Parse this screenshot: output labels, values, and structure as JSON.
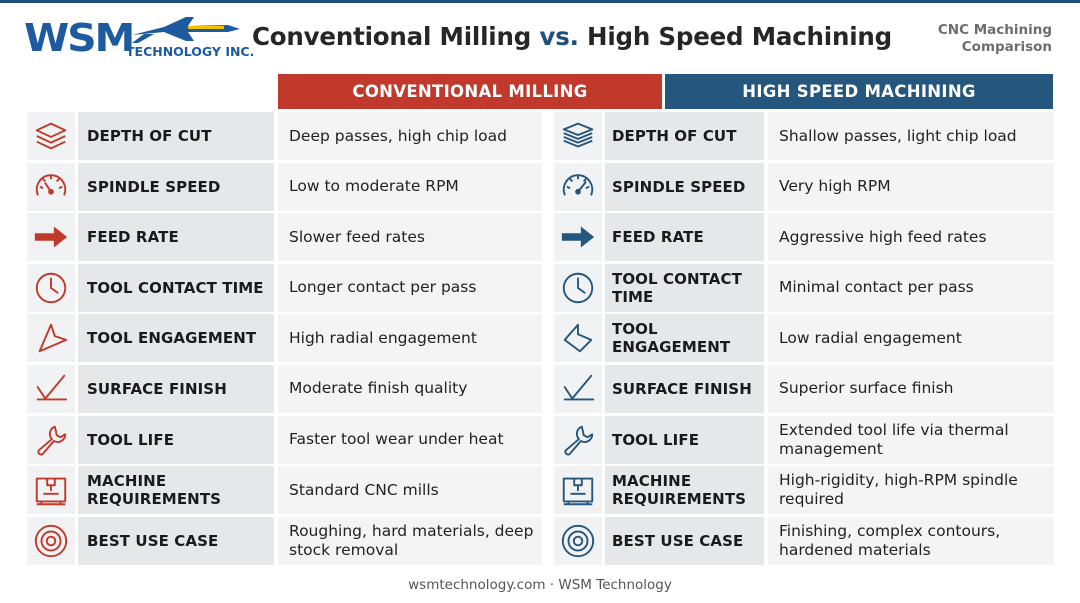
{
  "brand": {
    "logo_text": "WSM",
    "logo_sub": "TECHNOLOGY INC."
  },
  "header": {
    "title_part1": "Conventional Milling ",
    "title_vs": "vs.",
    "title_part2": " High Speed Machining",
    "subtitle_line1": "CNC Machining",
    "subtitle_line2": "Comparison"
  },
  "columns": {
    "conventional": "CONVENTIONAL MILLING",
    "hsm": "HIGH SPEED MACHINING"
  },
  "colors": {
    "conventional_accent": "#c0392b",
    "hsm_accent": "#24567e"
  },
  "rows": [
    {
      "icon": "layers-icon",
      "label": "DEPTH OF CUT",
      "conventional": "Deep passes, high chip load",
      "hsm": "Shallow passes, light chip load"
    },
    {
      "icon": "speedometer-icon",
      "label": "SPINDLE SPEED",
      "conventional": "Low to moderate RPM",
      "hsm": "Very high RPM"
    },
    {
      "icon": "arrow-right-icon",
      "label": "FEED RATE",
      "conventional": "Slower feed rates",
      "hsm": "Aggressive high feed rates"
    },
    {
      "icon": "clock-icon",
      "label": "TOOL CONTACT TIME",
      "conventional": "Longer contact per pass",
      "hsm": "Minimal contact per pass"
    },
    {
      "icon": "engagement-angle-icon",
      "label": "TOOL ENGAGEMENT",
      "conventional": "High radial engagement",
      "hsm": "Low radial engagement"
    },
    {
      "icon": "surface-finish-icon",
      "label": "SURFACE FINISH",
      "conventional": "Moderate finish quality",
      "hsm": "Superior surface finish"
    },
    {
      "icon": "wrench-icon",
      "label": "TOOL LIFE",
      "conventional": "Faster tool wear under heat",
      "hsm": "Extended tool life via thermal management"
    },
    {
      "icon": "machine-icon",
      "label": "MACHINE REQUIREMENTS",
      "conventional": "Standard CNC mills",
      "hsm": "High-rigidity, high-RPM spindle required"
    },
    {
      "icon": "target-icon",
      "label": "BEST USE CASE",
      "conventional": "Roughing, hard materials, deep stock removal",
      "hsm": "Finishing, complex contours, hardened materials"
    }
  ],
  "footer": "wsmtechnology.com · WSM Technology"
}
